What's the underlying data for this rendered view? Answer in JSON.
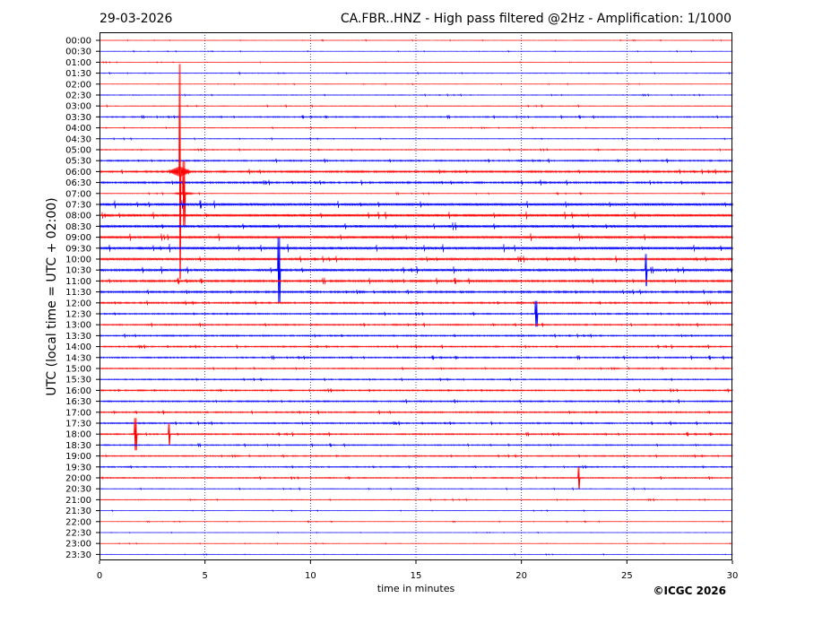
{
  "header": {
    "date": "29-03-2026",
    "title": "CA.FBR..HNZ - High pass filtered @2Hz - Amplification: 1/1000"
  },
  "footer": {
    "copyright": "©ICGC 2026"
  },
  "chart_data": {
    "type": "line",
    "title": "CA.FBR..HNZ - High pass filtered @2Hz - Amplification: 1/1000",
    "xlabel": "time in minutes",
    "ylabel": "UTC (local time = UTC + 02:00)",
    "xlim": [
      0,
      30
    ],
    "xticks": [
      0,
      5,
      10,
      15,
      20,
      25,
      30
    ],
    "grid": "vertical dotted lines at 5, 10, 15, 20, 25",
    "colors": {
      "even_rows": "#ff0000",
      "odd_rows": "#0000ff",
      "grid": "#000080"
    },
    "rows": [
      "00:00",
      "00:30",
      "01:00",
      "01:30",
      "02:00",
      "02:30",
      "03:00",
      "03:30",
      "04:00",
      "04:30",
      "05:00",
      "05:30",
      "06:00",
      "06:30",
      "07:00",
      "07:30",
      "08:00",
      "08:30",
      "09:00",
      "09:30",
      "10:00",
      "10:30",
      "11:00",
      "11:30",
      "12:00",
      "12:30",
      "13:00",
      "13:30",
      "14:00",
      "14:30",
      "15:00",
      "15:30",
      "16:00",
      "16:30",
      "17:00",
      "17:30",
      "18:00",
      "18:30",
      "19:00",
      "19:30",
      "20:00",
      "20:30",
      "21:00",
      "21:30",
      "22:00",
      "22:30",
      "23:00",
      "23:30"
    ],
    "noise_level": [
      0.2,
      0.2,
      0.2,
      0.3,
      0.2,
      0.3,
      0.3,
      0.5,
      0.3,
      0.3,
      0.4,
      0.6,
      0.8,
      0.8,
      0.3,
      1.2,
      1.2,
      1.2,
      1.1,
      1.2,
      1.0,
      1.0,
      0.9,
      0.8,
      0.7,
      0.6,
      0.6,
      0.6,
      0.6,
      0.6,
      0.5,
      0.5,
      0.6,
      0.6,
      0.6,
      0.6,
      0.6,
      0.5,
      0.5,
      0.5,
      0.5,
      0.3,
      0.3,
      0.2,
      0.2,
      0.2,
      0.2,
      0.2
    ],
    "events": [
      {
        "row": "06:00",
        "minute": 3.8,
        "amplitude": 1.0
      },
      {
        "row": "07:00",
        "minute": 4.0,
        "amplitude": 0.3
      },
      {
        "row": "10:30",
        "minute": 8.5,
        "amplitude": 0.3
      },
      {
        "row": "10:30",
        "minute": 25.9,
        "amplitude": 0.15
      },
      {
        "row": "12:30",
        "minute": 20.7,
        "amplitude": 0.12
      },
      {
        "row": "18:00",
        "minute": 1.7,
        "amplitude": 0.15
      },
      {
        "row": "18:00",
        "minute": 3.3,
        "amplitude": 0.1
      },
      {
        "row": "20:00",
        "minute": 22.7,
        "amplitude": 0.1
      }
    ]
  }
}
